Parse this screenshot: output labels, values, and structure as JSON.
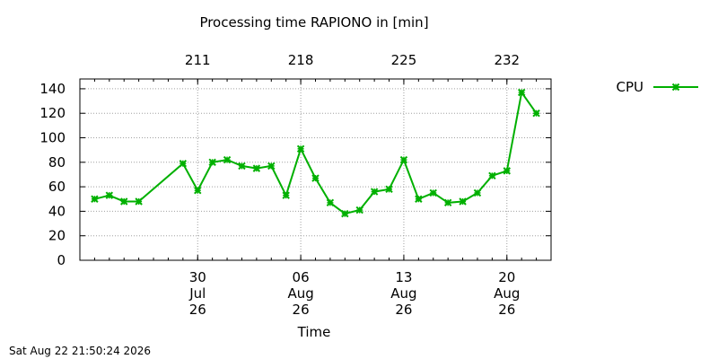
{
  "chart_data": {
    "type": "line",
    "title": "Processing time RAPIONO in [min]",
    "xlabel": "Time",
    "ylabel": "",
    "ylim": [
      0,
      148
    ],
    "yticks": [
      0,
      20,
      40,
      60,
      80,
      100,
      120,
      140
    ],
    "x": [
      "2026-07-23",
      "2026-07-24",
      "2026-07-25",
      "2026-07-26",
      "2026-07-29",
      "2026-07-30",
      "2026-07-31",
      "2026-08-01",
      "2026-08-02",
      "2026-08-03",
      "2026-08-04",
      "2026-08-05",
      "2026-08-06",
      "2026-08-07",
      "2026-08-08",
      "2026-08-09",
      "2026-08-10",
      "2026-08-11",
      "2026-08-12",
      "2026-08-13",
      "2026-08-14",
      "2026-08-15",
      "2026-08-16",
      "2026-08-17",
      "2026-08-18",
      "2026-08-19",
      "2026-08-20",
      "2026-08-21",
      "2026-08-22"
    ],
    "series": [
      {
        "name": "CPU",
        "color": "#00b000",
        "values": [
          50,
          53,
          48,
          48,
          79,
          57,
          80,
          82,
          77,
          75,
          77,
          53,
          91,
          67,
          47,
          38,
          41,
          56,
          58,
          82,
          50,
          55,
          47,
          48,
          55,
          69,
          73,
          137,
          120
        ]
      }
    ],
    "xticks_bottom": [
      {
        "date": "2026-07-30",
        "day": "30",
        "month": "Jul",
        "year": "26"
      },
      {
        "date": "2026-08-06",
        "day": "06",
        "month": "Aug",
        "year": "26"
      },
      {
        "date": "2026-08-13",
        "day": "13",
        "month": "Aug",
        "year": "26"
      },
      {
        "date": "2026-08-20",
        "day": "20",
        "month": "Aug",
        "year": "26"
      }
    ],
    "xticks_top": [
      {
        "date": "2026-07-30",
        "label": "211"
      },
      {
        "date": "2026-08-06",
        "label": "218"
      },
      {
        "date": "2026-08-13",
        "label": "225"
      },
      {
        "date": "2026-08-20",
        "label": "232"
      }
    ],
    "xlim": [
      "2026-07-22",
      "2026-08-23"
    ],
    "grid": true,
    "legend": "right",
    "timestamp": "Sat Aug 22 21:50:24 2026"
  }
}
